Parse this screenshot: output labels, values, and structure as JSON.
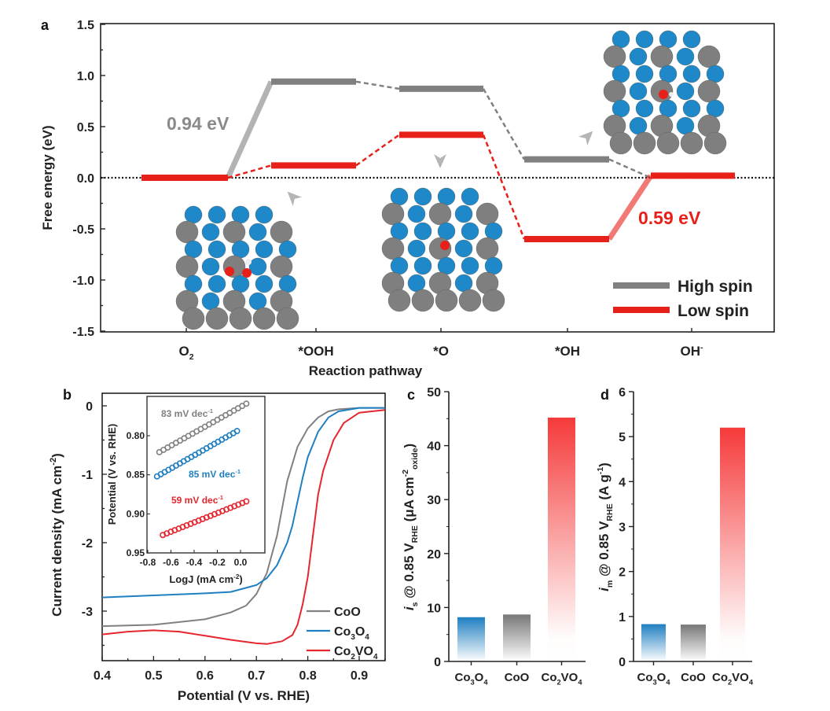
{
  "colors": {
    "high_spin": "#808080",
    "low_spin": "#e8201a",
    "CoO": "#808080",
    "Co3O4": "#1f7fc1",
    "Co2VO4": "#e5262e",
    "co_atom": "#7f7f7f",
    "v_atom": "#1e88c8",
    "o_atom": "#e8201a"
  },
  "chart_data": [
    {
      "panel": "a",
      "type": "line",
      "xlabel": "Reaction pathway",
      "ylabel": "Free energy (eV)",
      "ylim": [
        -1.5,
        1.5
      ],
      "yticks": [
        -1.5,
        -1.0,
        -0.5,
        0.0,
        0.5,
        1.0,
        1.5
      ],
      "categories": [
        [
          "O",
          [
            [
              "2",
              "sub"
            ]
          ]
        ],
        [
          "*OOH",
          []
        ],
        [
          "*O",
          []
        ],
        [
          "*OH",
          []
        ],
        [
          "OH",
          [
            [
              "-",
              "sup"
            ]
          ]
        ]
      ],
      "series": [
        {
          "name": "High spin",
          "values": [
            0.0,
            0.94,
            0.87,
            0.18,
            0.0
          ]
        },
        {
          "name": "Low spin",
          "values": [
            0.0,
            0.12,
            0.42,
            -0.6,
            0.02
          ]
        }
      ],
      "annotations": [
        "0.94 eV",
        "0.59 eV"
      ],
      "zero_line": "dotted",
      "legend": "bottom-right"
    },
    {
      "panel": "b",
      "type": "line",
      "xlabel": "Potential (V vs. RHE)",
      "ylabel": [
        [
          "Current density (mA cm",
          ""
        ],
        [
          "-2",
          "sup"
        ],
        [
          ")",
          ""
        ]
      ],
      "xlim": [
        0.4,
        0.95
      ],
      "ylim": [
        -3.75,
        0.18
      ],
      "xticks": [
        0.4,
        0.5,
        0.6,
        0.7,
        0.8,
        0.9
      ],
      "yticks": [
        0,
        -1,
        -2,
        -3
      ],
      "legend": "bottom-right",
      "series": [
        {
          "name": "CoO",
          "label": [
            [
              "CoO",
              ""
            ]
          ],
          "x": [
            0.4,
            0.5,
            0.6,
            0.65,
            0.68,
            0.7,
            0.72,
            0.74,
            0.75,
            0.76,
            0.78,
            0.8,
            0.82,
            0.84,
            0.86,
            0.9,
            0.95
          ],
          "y": [
            -3.22,
            -3.2,
            -3.12,
            -3.02,
            -2.92,
            -2.75,
            -2.45,
            -1.9,
            -1.5,
            -1.1,
            -0.6,
            -0.33,
            -0.17,
            -0.08,
            -0.05,
            -0.03,
            -0.03
          ]
        },
        {
          "name": "Co3O4",
          "label": [
            [
              "Co",
              ""
            ],
            [
              "3",
              "sub"
            ],
            [
              "O",
              ""
            ],
            [
              "4",
              "sub"
            ]
          ],
          "x": [
            0.4,
            0.5,
            0.6,
            0.65,
            0.7,
            0.72,
            0.74,
            0.76,
            0.77,
            0.78,
            0.79,
            0.8,
            0.82,
            0.84,
            0.86,
            0.9,
            0.95
          ],
          "y": [
            -2.8,
            -2.77,
            -2.74,
            -2.72,
            -2.62,
            -2.52,
            -2.33,
            -2.0,
            -1.75,
            -1.4,
            -1.05,
            -0.75,
            -0.38,
            -0.17,
            -0.08,
            -0.03,
            -0.03
          ]
        },
        {
          "name": "Co2VO4",
          "label": [
            [
              "Co",
              ""
            ],
            [
              "2",
              "sub"
            ],
            [
              "VO",
              ""
            ],
            [
              "4",
              "sub"
            ]
          ],
          "x": [
            0.4,
            0.45,
            0.5,
            0.55,
            0.6,
            0.65,
            0.7,
            0.72,
            0.75,
            0.77,
            0.78,
            0.79,
            0.8,
            0.81,
            0.82,
            0.83,
            0.85,
            0.87,
            0.9,
            0.95
          ],
          "y": [
            -3.34,
            -3.3,
            -3.28,
            -3.3,
            -3.36,
            -3.42,
            -3.47,
            -3.48,
            -3.44,
            -3.35,
            -3.2,
            -2.9,
            -2.5,
            -1.9,
            -1.3,
            -0.95,
            -0.5,
            -0.25,
            -0.1,
            -0.06
          ]
        }
      ],
      "inset": {
        "type": "scatter",
        "xlabel": [
          [
            "LogJ (mA cm",
            ""
          ],
          [
            "-2",
            "sup"
          ],
          [
            ")",
            ""
          ]
        ],
        "ylabel": "Potential (V vs. RHE)",
        "xlim": [
          -0.8,
          0.2
        ],
        "ylim": [
          0.95,
          0.75
        ],
        "y_inverted": true,
        "xticks": [
          -0.8,
          -0.6,
          -0.4,
          -0.2,
          0.0
        ],
        "yticks": [
          0.8,
          0.85,
          0.9,
          0.95
        ],
        "series": [
          {
            "name": "CoO",
            "x": [
              -0.7,
              0.05
            ],
            "y": [
              0.821,
              0.759
            ],
            "label": [
              [
                "83 mV dec",
                ""
              ],
              [
                "-1",
                "sup"
              ]
            ]
          },
          {
            "name": "Co3O4",
            "x": [
              -0.72,
              -0.03
            ],
            "y": [
              0.852,
              0.794
            ],
            "label": [
              [
                "85 mV dec",
                ""
              ],
              [
                "-1",
                "sup"
              ]
            ]
          },
          {
            "name": "Co2VO4",
            "x": [
              -0.67,
              0.05
            ],
            "y": [
              0.927,
              0.884
            ],
            "label": [
              [
                "59 mV dec",
                ""
              ],
              [
                "-1",
                "sup"
              ]
            ]
          }
        ]
      }
    },
    {
      "panel": "c",
      "type": "bar",
      "categories": [
        "Co3O4",
        "CoO",
        "Co2VO4"
      ],
      "values": [
        8.2,
        8.7,
        45.2
      ],
      "ylim": [
        0,
        50
      ],
      "yticks": [
        0,
        10,
        20,
        30,
        40,
        50
      ],
      "ylabel": [
        [
          "i",
          "it"
        ],
        [
          "s",
          "sub"
        ],
        [
          " @ 0.85 V",
          ""
        ],
        [
          "RHE",
          "sub"
        ],
        [
          " (μA cm",
          ""
        ],
        [
          "-2",
          "sup"
        ],
        [
          "oxide",
          "sub"
        ],
        [
          ")",
          ""
        ]
      ]
    },
    {
      "panel": "d",
      "type": "bar",
      "categories": [
        "Co3O4",
        "CoO",
        "Co2VO4"
      ],
      "values": [
        0.83,
        0.82,
        5.2
      ],
      "ylim": [
        0,
        6
      ],
      "yticks": [
        0,
        1,
        2,
        3,
        4,
        5,
        6
      ],
      "ylabel": [
        [
          "i",
          "it"
        ],
        [
          "m",
          "sub"
        ],
        [
          " @ 0.85 V",
          ""
        ],
        [
          "RHE",
          "sub"
        ],
        [
          " (A g",
          ""
        ],
        [
          "-1",
          "sup"
        ],
        [
          ")",
          ""
        ]
      ]
    }
  ],
  "bar_labels": {
    "Co3O4": [
      [
        "Co",
        ""
      ],
      [
        "3",
        "sub"
      ],
      [
        "O",
        ""
      ],
      [
        "4",
        "sub"
      ]
    ],
    "CoO": [
      [
        "CoO",
        ""
      ]
    ],
    "Co2VO4": [
      [
        "Co",
        ""
      ],
      [
        "2",
        "sub"
      ],
      [
        "VO",
        ""
      ],
      [
        "4",
        "sub"
      ]
    ]
  }
}
